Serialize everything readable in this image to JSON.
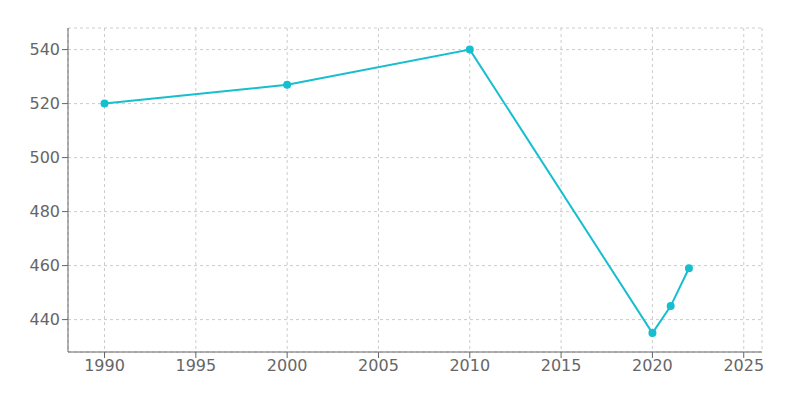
{
  "chart_data": {
    "type": "line",
    "x": [
      1990,
      2000,
      2010,
      2020,
      2021,
      2022
    ],
    "values": [
      520,
      527,
      540,
      435,
      445,
      459
    ],
    "color": "#17becf",
    "marker": "circle",
    "xlim": [
      1988,
      2026
    ],
    "xticks": [
      1990,
      1995,
      2000,
      2005,
      2010,
      2015,
      2020,
      2025
    ],
    "ylim": [
      428,
      548
    ],
    "yticks": [
      440,
      460,
      480,
      500,
      520,
      540
    ],
    "grid": true
  }
}
